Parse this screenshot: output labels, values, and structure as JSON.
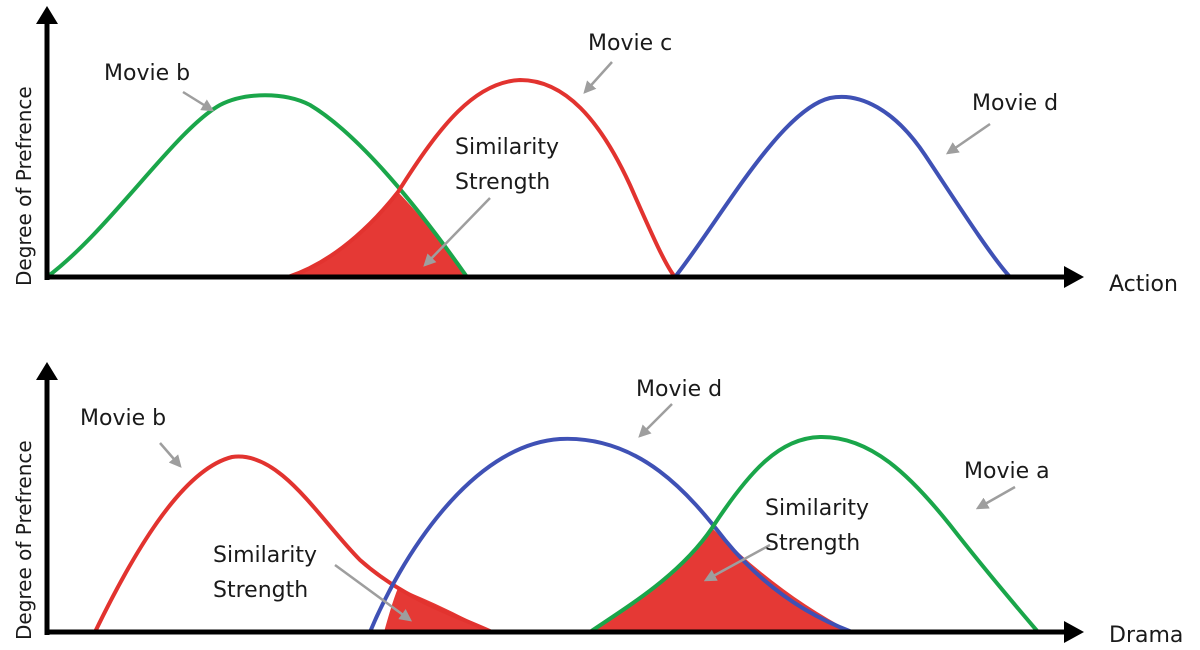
{
  "colors": {
    "green": "#1aa64a",
    "red": "#e2332f",
    "blue": "#3f51b5",
    "fill_red": "#e53935",
    "axis": "#000000",
    "pointer": "#9e9e9e"
  },
  "top_panel": {
    "y_axis_label": "Degree of Prefrence",
    "x_axis_label": "Action",
    "labels": {
      "movie_b": "Movie b",
      "movie_c": "Movie c",
      "movie_d": "Movie d",
      "similarity_line1": "Similarity",
      "similarity_line2": "Strength"
    }
  },
  "bottom_panel": {
    "y_axis_label": "Degree of Prefrence",
    "x_axis_label": "Drama",
    "labels": {
      "movie_b": "Movie b",
      "movie_d": "Movie d",
      "movie_a": "Movie a",
      "similarity_left_line1": "Similarity",
      "similarity_left_line2": "Strength",
      "similarity_right_line1": "Similarity",
      "similarity_right_line2": "Strength"
    }
  }
}
